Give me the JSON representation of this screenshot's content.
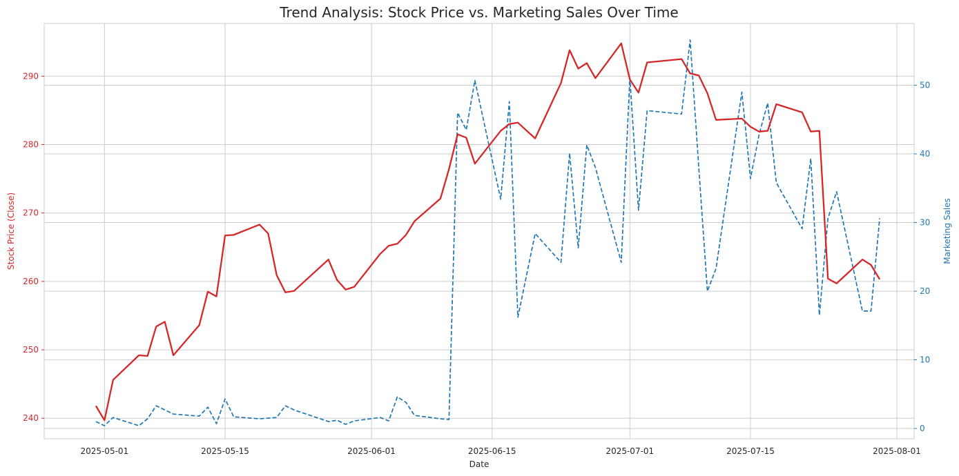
{
  "chart_data": {
    "type": "line",
    "title": "Trend Analysis: Stock Price vs. Marketing Sales Over Time",
    "xlabel": "Date",
    "ylabel_left": "Stock Price (Close)",
    "ylabel_right": "Marketing Sales",
    "xlim": [
      "2025-04-24",
      "2025-08-03"
    ],
    "ylim_left": [
      237,
      297.7
    ],
    "ylim_right": [
      -1.5,
      59
    ],
    "x_ticks": [
      "2025-05-01",
      "2025-05-15",
      "2025-06-01",
      "2025-06-15",
      "2025-07-01",
      "2025-07-15",
      "2025-08-01"
    ],
    "y_ticks_left": [
      240,
      250,
      260,
      270,
      280,
      290
    ],
    "y_ticks_right": [
      0,
      10,
      20,
      30,
      40,
      50
    ],
    "grid": true,
    "colors": {
      "left": "#d62728",
      "right": "#1f77b4"
    },
    "series": [
      {
        "name": "Stock Price (Close)",
        "axis": "left",
        "style": "solid",
        "x": [
          "2025-04-30",
          "2025-05-01",
          "2025-05-02",
          "2025-05-05",
          "2025-05-06",
          "2025-05-07",
          "2025-05-08",
          "2025-05-09",
          "2025-05-12",
          "2025-05-13",
          "2025-05-14",
          "2025-05-15",
          "2025-05-16",
          "2025-05-19",
          "2025-05-20",
          "2025-05-21",
          "2025-05-22",
          "2025-05-23",
          "2025-05-27",
          "2025-05-28",
          "2025-05-29",
          "2025-05-30",
          "2025-06-02",
          "2025-06-03",
          "2025-06-04",
          "2025-06-05",
          "2025-06-06",
          "2025-06-09",
          "2025-06-10",
          "2025-06-11",
          "2025-06-12",
          "2025-06-13",
          "2025-06-16",
          "2025-06-17",
          "2025-06-18",
          "2025-06-20",
          "2025-06-23",
          "2025-06-24",
          "2025-06-25",
          "2025-06-26",
          "2025-06-27",
          "2025-06-30",
          "2025-07-01",
          "2025-07-02",
          "2025-07-03",
          "2025-07-07",
          "2025-07-08",
          "2025-07-09",
          "2025-07-10",
          "2025-07-11",
          "2025-07-14",
          "2025-07-15",
          "2025-07-16",
          "2025-07-17",
          "2025-07-18",
          "2025-07-21",
          "2025-07-22",
          "2025-07-23",
          "2025-07-24",
          "2025-07-25",
          "2025-07-28",
          "2025-07-29",
          "2025-07-30"
        ],
        "y": [
          241.8,
          239.7,
          245.6,
          249.2,
          249.1,
          253.4,
          254.1,
          249.2,
          253.6,
          258.5,
          257.8,
          266.7,
          266.8,
          268.3,
          267.0,
          260.9,
          258.4,
          258.6,
          263.2,
          260.2,
          258.8,
          259.2,
          264.0,
          265.2,
          265.5,
          266.8,
          268.8,
          272.1,
          276.4,
          281.5,
          281.0,
          277.2,
          282.0,
          283.0,
          283.2,
          280.9,
          289.0,
          293.8,
          291.1,
          291.9,
          289.7,
          294.8,
          289.5,
          287.6,
          292.0,
          292.5,
          290.4,
          290.1,
          287.5,
          283.6,
          283.8,
          282.6,
          281.9,
          282.0,
          285.9,
          284.7,
          281.9,
          282.0,
          260.4,
          259.7,
          263.2,
          262.4,
          260.3
        ]
      },
      {
        "name": "Marketing Sales",
        "axis": "right",
        "style": "dashed",
        "x": [
          "2025-04-30",
          "2025-05-01",
          "2025-05-02",
          "2025-05-05",
          "2025-05-06",
          "2025-05-07",
          "2025-05-08",
          "2025-05-09",
          "2025-05-12",
          "2025-05-13",
          "2025-05-14",
          "2025-05-15",
          "2025-05-16",
          "2025-05-19",
          "2025-05-20",
          "2025-05-21",
          "2025-05-22",
          "2025-05-23",
          "2025-05-27",
          "2025-05-28",
          "2025-05-29",
          "2025-05-30",
          "2025-06-02",
          "2025-06-03",
          "2025-06-04",
          "2025-06-05",
          "2025-06-06",
          "2025-06-09",
          "2025-06-10",
          "2025-06-11",
          "2025-06-12",
          "2025-06-13",
          "2025-06-16",
          "2025-06-17",
          "2025-06-18",
          "2025-06-20",
          "2025-06-23",
          "2025-06-24",
          "2025-06-25",
          "2025-06-26",
          "2025-06-27",
          "2025-06-30",
          "2025-07-01",
          "2025-07-02",
          "2025-07-03",
          "2025-07-07",
          "2025-07-08",
          "2025-07-09",
          "2025-07-10",
          "2025-07-11",
          "2025-07-14",
          "2025-07-15",
          "2025-07-16",
          "2025-07-17",
          "2025-07-18",
          "2025-07-21",
          "2025-07-22",
          "2025-07-23",
          "2025-07-24",
          "2025-07-25",
          "2025-07-28",
          "2025-07-29",
          "2025-07-30"
        ],
        "y": [
          1.0,
          0.4,
          1.6,
          0.4,
          1.4,
          3.3,
          2.7,
          2.1,
          1.8,
          3.1,
          0.7,
          4.3,
          1.7,
          1.4,
          1.5,
          1.6,
          3.3,
          2.7,
          1.0,
          1.2,
          0.6,
          1.1,
          1.6,
          1.1,
          4.6,
          3.8,
          1.9,
          1.4,
          1.3,
          46.0,
          43.5,
          50.7,
          33.4,
          47.6,
          16.2,
          28.4,
          24.2,
          40.1,
          26.3,
          41.3,
          38.0,
          24.2,
          51.1,
          31.8,
          46.3,
          45.8,
          56.6,
          38.0,
          20.0,
          23.3,
          49.0,
          36.4,
          42.8,
          47.4,
          35.8,
          29.1,
          39.3,
          16.5,
          30.6,
          34.5,
          17.1,
          17.1,
          30.6
        ]
      }
    ]
  }
}
